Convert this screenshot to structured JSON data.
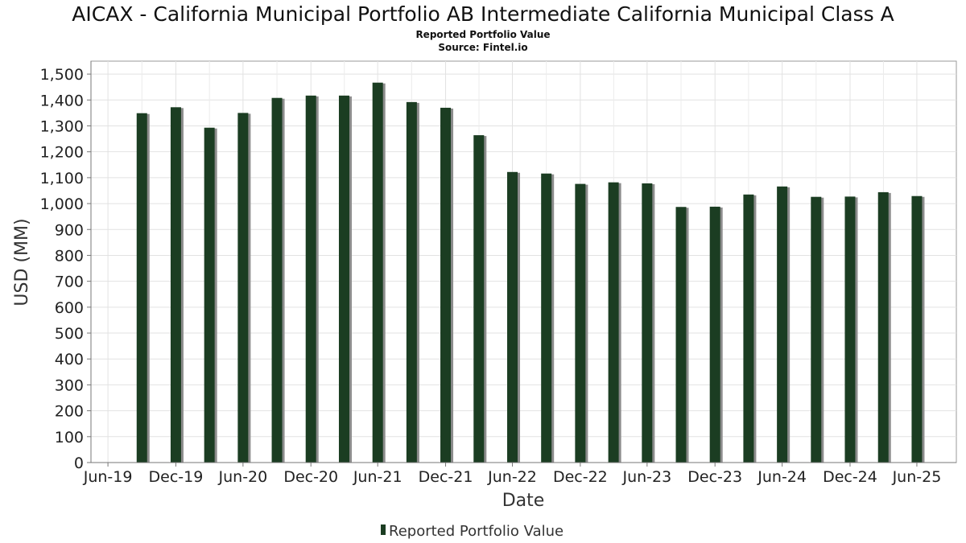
{
  "chart_data": {
    "type": "bar",
    "title": "AICAX - California Municipal Portfolio AB Intermediate California Municipal Class A",
    "subtitle": "Reported Portfolio Value",
    "source": "Source: Fintel.io",
    "xlabel": "Date",
    "ylabel": "USD (MM)",
    "ylim": [
      0,
      1550
    ],
    "yticks": [
      0,
      100,
      200,
      300,
      400,
      500,
      600,
      700,
      800,
      900,
      1000,
      1100,
      1200,
      1300,
      1400,
      1500
    ],
    "ytick_labels": [
      "0",
      "100",
      "200",
      "300",
      "400",
      "500",
      "600",
      "700",
      "800",
      "900",
      "1,000",
      "1,100",
      "1,200",
      "1,300",
      "1,400",
      "1,500"
    ],
    "xlim": [
      "2019-05-15",
      "2025-10-15"
    ],
    "xticks": [
      "2019-06-30",
      "2019-12-31",
      "2020-06-30",
      "2020-12-31",
      "2021-06-30",
      "2021-12-31",
      "2022-06-30",
      "2022-12-31",
      "2023-06-30",
      "2023-12-31",
      "2024-06-30",
      "2024-12-31",
      "2025-06-30"
    ],
    "xtick_labels": [
      "Jun-19",
      "Dec-19",
      "Jun-20",
      "Dec-20",
      "Jun-21",
      "Dec-21",
      "Jun-22",
      "Dec-22",
      "Jun-23",
      "Dec-23",
      "Jun-24",
      "Dec-24",
      "Jun-25"
    ],
    "grid": true,
    "legend_position": "bottom-center",
    "series": [
      {
        "name": "Reported Portfolio Value",
        "color": "#1b3d22",
        "x": [
          "2019-09-30",
          "2019-12-31",
          "2020-03-31",
          "2020-06-30",
          "2020-09-30",
          "2020-12-31",
          "2021-03-31",
          "2021-06-30",
          "2021-09-30",
          "2021-12-31",
          "2022-03-31",
          "2022-06-30",
          "2022-09-30",
          "2022-12-31",
          "2023-03-31",
          "2023-06-30",
          "2023-09-30",
          "2023-12-31",
          "2024-03-31",
          "2024-06-30",
          "2024-09-30",
          "2024-12-31",
          "2025-03-31",
          "2025-06-30"
        ],
        "values": [
          1349,
          1372,
          1293,
          1350,
          1408,
          1417,
          1417,
          1467,
          1392,
          1370,
          1264,
          1122,
          1116,
          1076,
          1082,
          1078,
          987,
          988,
          1035,
          1066,
          1026,
          1027,
          1044,
          1029
        ]
      }
    ]
  }
}
